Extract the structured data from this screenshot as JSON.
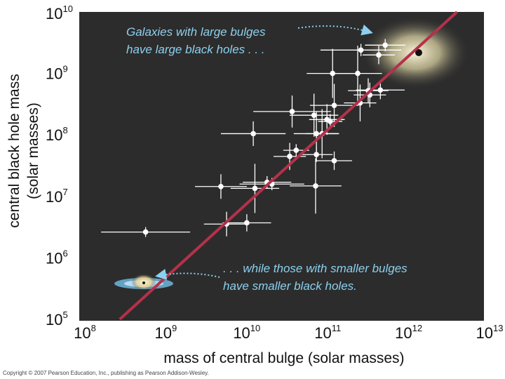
{
  "chart_data": {
    "type": "scatter",
    "title": "",
    "xlabel": "mass of central bulge (solar masses)",
    "ylabel_line1": "central black hole mass",
    "ylabel_line2": "(solar masses)",
    "x_scale": "log",
    "y_scale": "log",
    "xlim_log10": [
      8,
      13
    ],
    "ylim_log10": [
      5,
      10
    ],
    "x_ticks": [
      {
        "base": "10",
        "exp": "8",
        "log": 8
      },
      {
        "base": "10",
        "exp": "9",
        "log": 9
      },
      {
        "base": "10",
        "exp": "10",
        "log": 10
      },
      {
        "base": "10",
        "exp": "11",
        "log": 11
      },
      {
        "base": "10",
        "exp": "12",
        "log": 12
      },
      {
        "base": "10",
        "exp": "13",
        "log": 13
      }
    ],
    "y_ticks": [
      {
        "base": "10",
        "exp": "5",
        "log": 5
      },
      {
        "base": "10",
        "exp": "6",
        "log": 6
      },
      {
        "base": "10",
        "exp": "7",
        "log": 7
      },
      {
        "base": "10",
        "exp": "8",
        "log": 8
      },
      {
        "base": "10",
        "exp": "9",
        "log": 9
      },
      {
        "base": "10",
        "exp": "10",
        "log": 10
      }
    ],
    "grid": false,
    "background_color": "#2c2c2c",
    "point_color": "#ffffff",
    "fit_line_color": "#b4314a",
    "fit_line_log10": [
      [
        8,
        4.4
      ],
      [
        13,
        10.4
      ]
    ],
    "points_log10": [
      {
        "x": 8.82,
        "y": 6.42,
        "xerr": 0.55,
        "yerr": 0.08
      },
      {
        "x": 9.75,
        "y": 7.16,
        "xerr": 0.32,
        "yerr": 0.2
      },
      {
        "x": 9.82,
        "y": 6.55,
        "xerr": 0.28,
        "yerr": 0.2
      },
      {
        "x": 10.07,
        "y": 6.57,
        "xerr": 0.3,
        "yerr": 0.14
      },
      {
        "x": 10.17,
        "y": 7.13,
        "xerr": 0.3,
        "yerr": 0.4
      },
      {
        "x": 10.32,
        "y": 7.23,
        "xerr": 0.3,
        "yerr": 0.1
      },
      {
        "x": 10.38,
        "y": 7.2,
        "xerr": 0.4,
        "yerr": 0.1
      },
      {
        "x": 10.6,
        "y": 7.65,
        "xerr": 0.2,
        "yerr": 0.22
      },
      {
        "x": 10.68,
        "y": 7.75,
        "xerr": 0.16,
        "yerr": 0.1
      },
      {
        "x": 10.93,
        "y": 7.68,
        "xerr": 0.2,
        "yerr": 0.12
      },
      {
        "x": 10.92,
        "y": 7.17,
        "xerr": 0.32,
        "yerr": 0.45
      },
      {
        "x": 11.15,
        "y": 7.58,
        "xerr": 0.22,
        "yerr": 0.15
      },
      {
        "x": 10.15,
        "y": 8.02,
        "xerr": 0.4,
        "yerr": 0.2
      },
      {
        "x": 10.63,
        "y": 8.38,
        "xerr": 0.48,
        "yerr": 0.26
      },
      {
        "x": 10.9,
        "y": 8.32,
        "xerr": 0.3,
        "yerr": 0.35
      },
      {
        "x": 10.93,
        "y": 8.02,
        "xerr": 0.28,
        "yerr": 0.36
      },
      {
        "x": 11.0,
        "y": 8.02,
        "xerr": 0.2,
        "yerr": 0.4
      },
      {
        "x": 11.06,
        "y": 8.25,
        "xerr": 0.22,
        "yerr": 0.25
      },
      {
        "x": 11.1,
        "y": 8.22,
        "xerr": 0.15,
        "yerr": 0.12
      },
      {
        "x": 11.15,
        "y": 8.48,
        "xerr": 0.3,
        "yerr": 0.35
      },
      {
        "x": 11.13,
        "y": 9.0,
        "xerr": 0.32,
        "yerr": 0.4
      },
      {
        "x": 11.44,
        "y": 9.0,
        "xerr": 0.3,
        "yerr": 0.45
      },
      {
        "x": 11.47,
        "y": 8.52,
        "xerr": 0.2,
        "yerr": 0.3
      },
      {
        "x": 11.57,
        "y": 8.72,
        "xerr": 0.25,
        "yerr": 0.2
      },
      {
        "x": 11.59,
        "y": 8.65,
        "xerr": 0.2,
        "yerr": 0.2
      },
      {
        "x": 11.72,
        "y": 8.73,
        "xerr": 0.3,
        "yerr": 0.15
      },
      {
        "x": 11.48,
        "y": 9.38,
        "xerr": 0.5,
        "yerr": 0.1
      },
      {
        "x": 11.7,
        "y": 9.3,
        "xerr": 0.2,
        "yerr": 0.15
      },
      {
        "x": 11.78,
        "y": 9.46,
        "xerr": 0.25,
        "yerr": 0.1
      }
    ],
    "annotations": [
      {
        "line1": "Galaxies with large bulges",
        "line2": "have large black holes . . ."
      },
      {
        "line1": ". . . while those with smaller bulges",
        "line2": "have smaller black holes."
      }
    ]
  },
  "footer": {
    "copyright": "Copyright © 2007 Pearson Education, Inc., publishing as Pearson Addison-Wesley."
  }
}
